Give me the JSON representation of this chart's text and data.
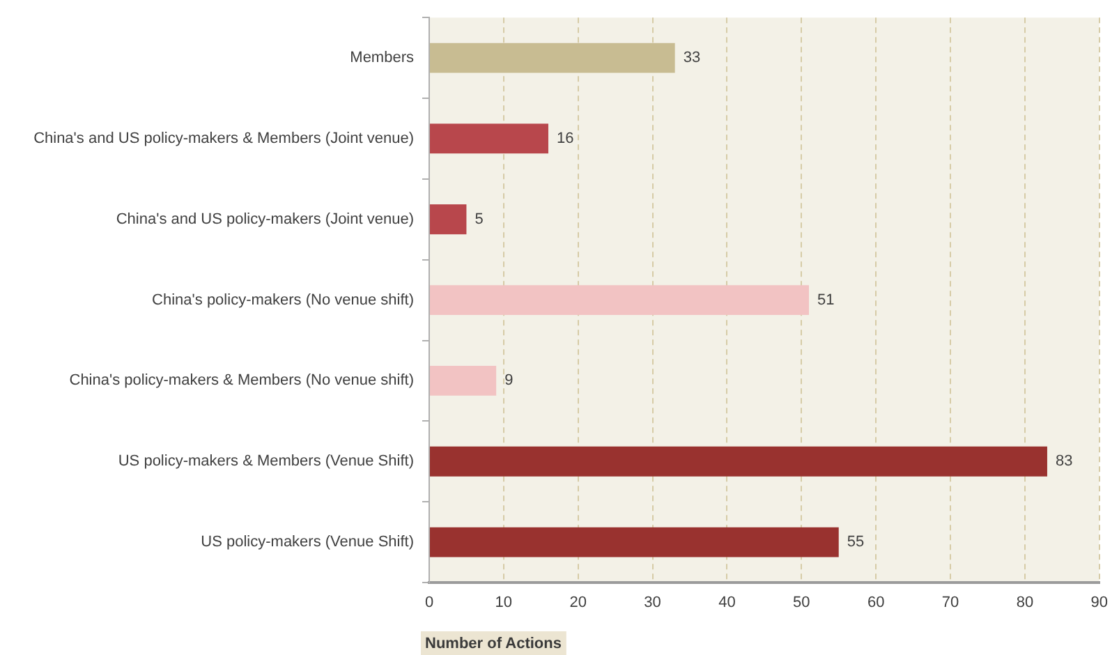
{
  "chart_data": {
    "type": "bar",
    "orientation": "horizontal",
    "categories": [
      "Members",
      "China's and US policy-makers & Members (Joint venue)",
      "China's and US policy-makers (Joint venue)",
      "China's policy-makers (No venue shift)",
      "China's policy-makers & Members (No venue shift)",
      "US policy-makers & Members (Venue Shift)",
      "US policy-makers (Venue Shift)"
    ],
    "values": [
      33,
      16,
      5,
      51,
      9,
      83,
      55
    ],
    "colors": [
      "#c8bc92",
      "#b8474c",
      "#b8474c",
      "#f2c3c3",
      "#f2c3c3",
      "#99322f",
      "#99322f"
    ],
    "xlabel": "Number of Actions",
    "xlim": [
      0,
      90
    ],
    "xticks": [
      0,
      10,
      20,
      30,
      40,
      50,
      60,
      70,
      80,
      90
    ],
    "grid": "x",
    "data_labels": true
  }
}
